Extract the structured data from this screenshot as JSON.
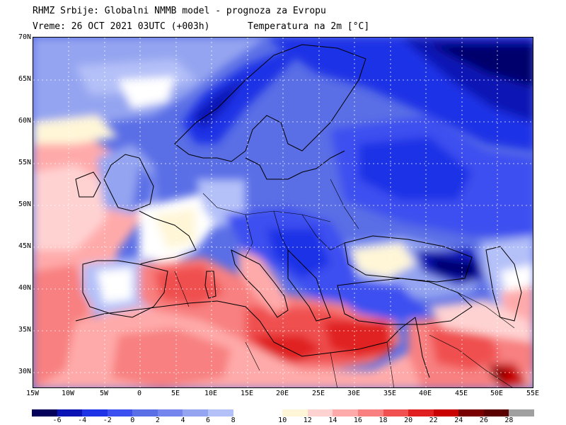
{
  "header": {
    "line1": "RHMZ Srbije: Globalni NMMB model - prognoza za Evropu",
    "line2_left": "Vreme: 26 OCT 2021 03UTC (+003h)",
    "line2_right": "Temperatura na 2m [°C]"
  },
  "map": {
    "lat_labels": [
      "70N",
      "65N",
      "60N",
      "55N",
      "50N",
      "45N",
      "40N",
      "35N",
      "30N"
    ],
    "lon_labels": [
      "15W",
      "10W",
      "5W",
      "0",
      "5E",
      "10E",
      "15E",
      "20E",
      "25E",
      "30E",
      "35E",
      "40E",
      "45E",
      "50E",
      "55E"
    ],
    "lat_range": [
      28,
      70
    ],
    "lon_range": [
      -15,
      55
    ]
  },
  "legend": {
    "labels": [
      "-6",
      "-4",
      "-2",
      "0",
      "2",
      "4",
      "6",
      "8",
      "10",
      "12",
      "14",
      "16",
      "18",
      "20",
      "22",
      "24",
      "26",
      "28"
    ],
    "colors_left": [
      "#05005a",
      "#0a14b4",
      "#1e32e6",
      "#3c50f0",
      "#5a6ee6",
      "#7486ee",
      "#94a4f0",
      "#b4c0f8"
    ],
    "colors_right": [
      "#ffffff",
      "#fff6d8",
      "#ffd2d2",
      "#ffaaaa",
      "#f88080",
      "#f05050",
      "#e02020",
      "#c80000",
      "#780000",
      "#5a0000",
      "#a0a0a0"
    ]
  }
}
